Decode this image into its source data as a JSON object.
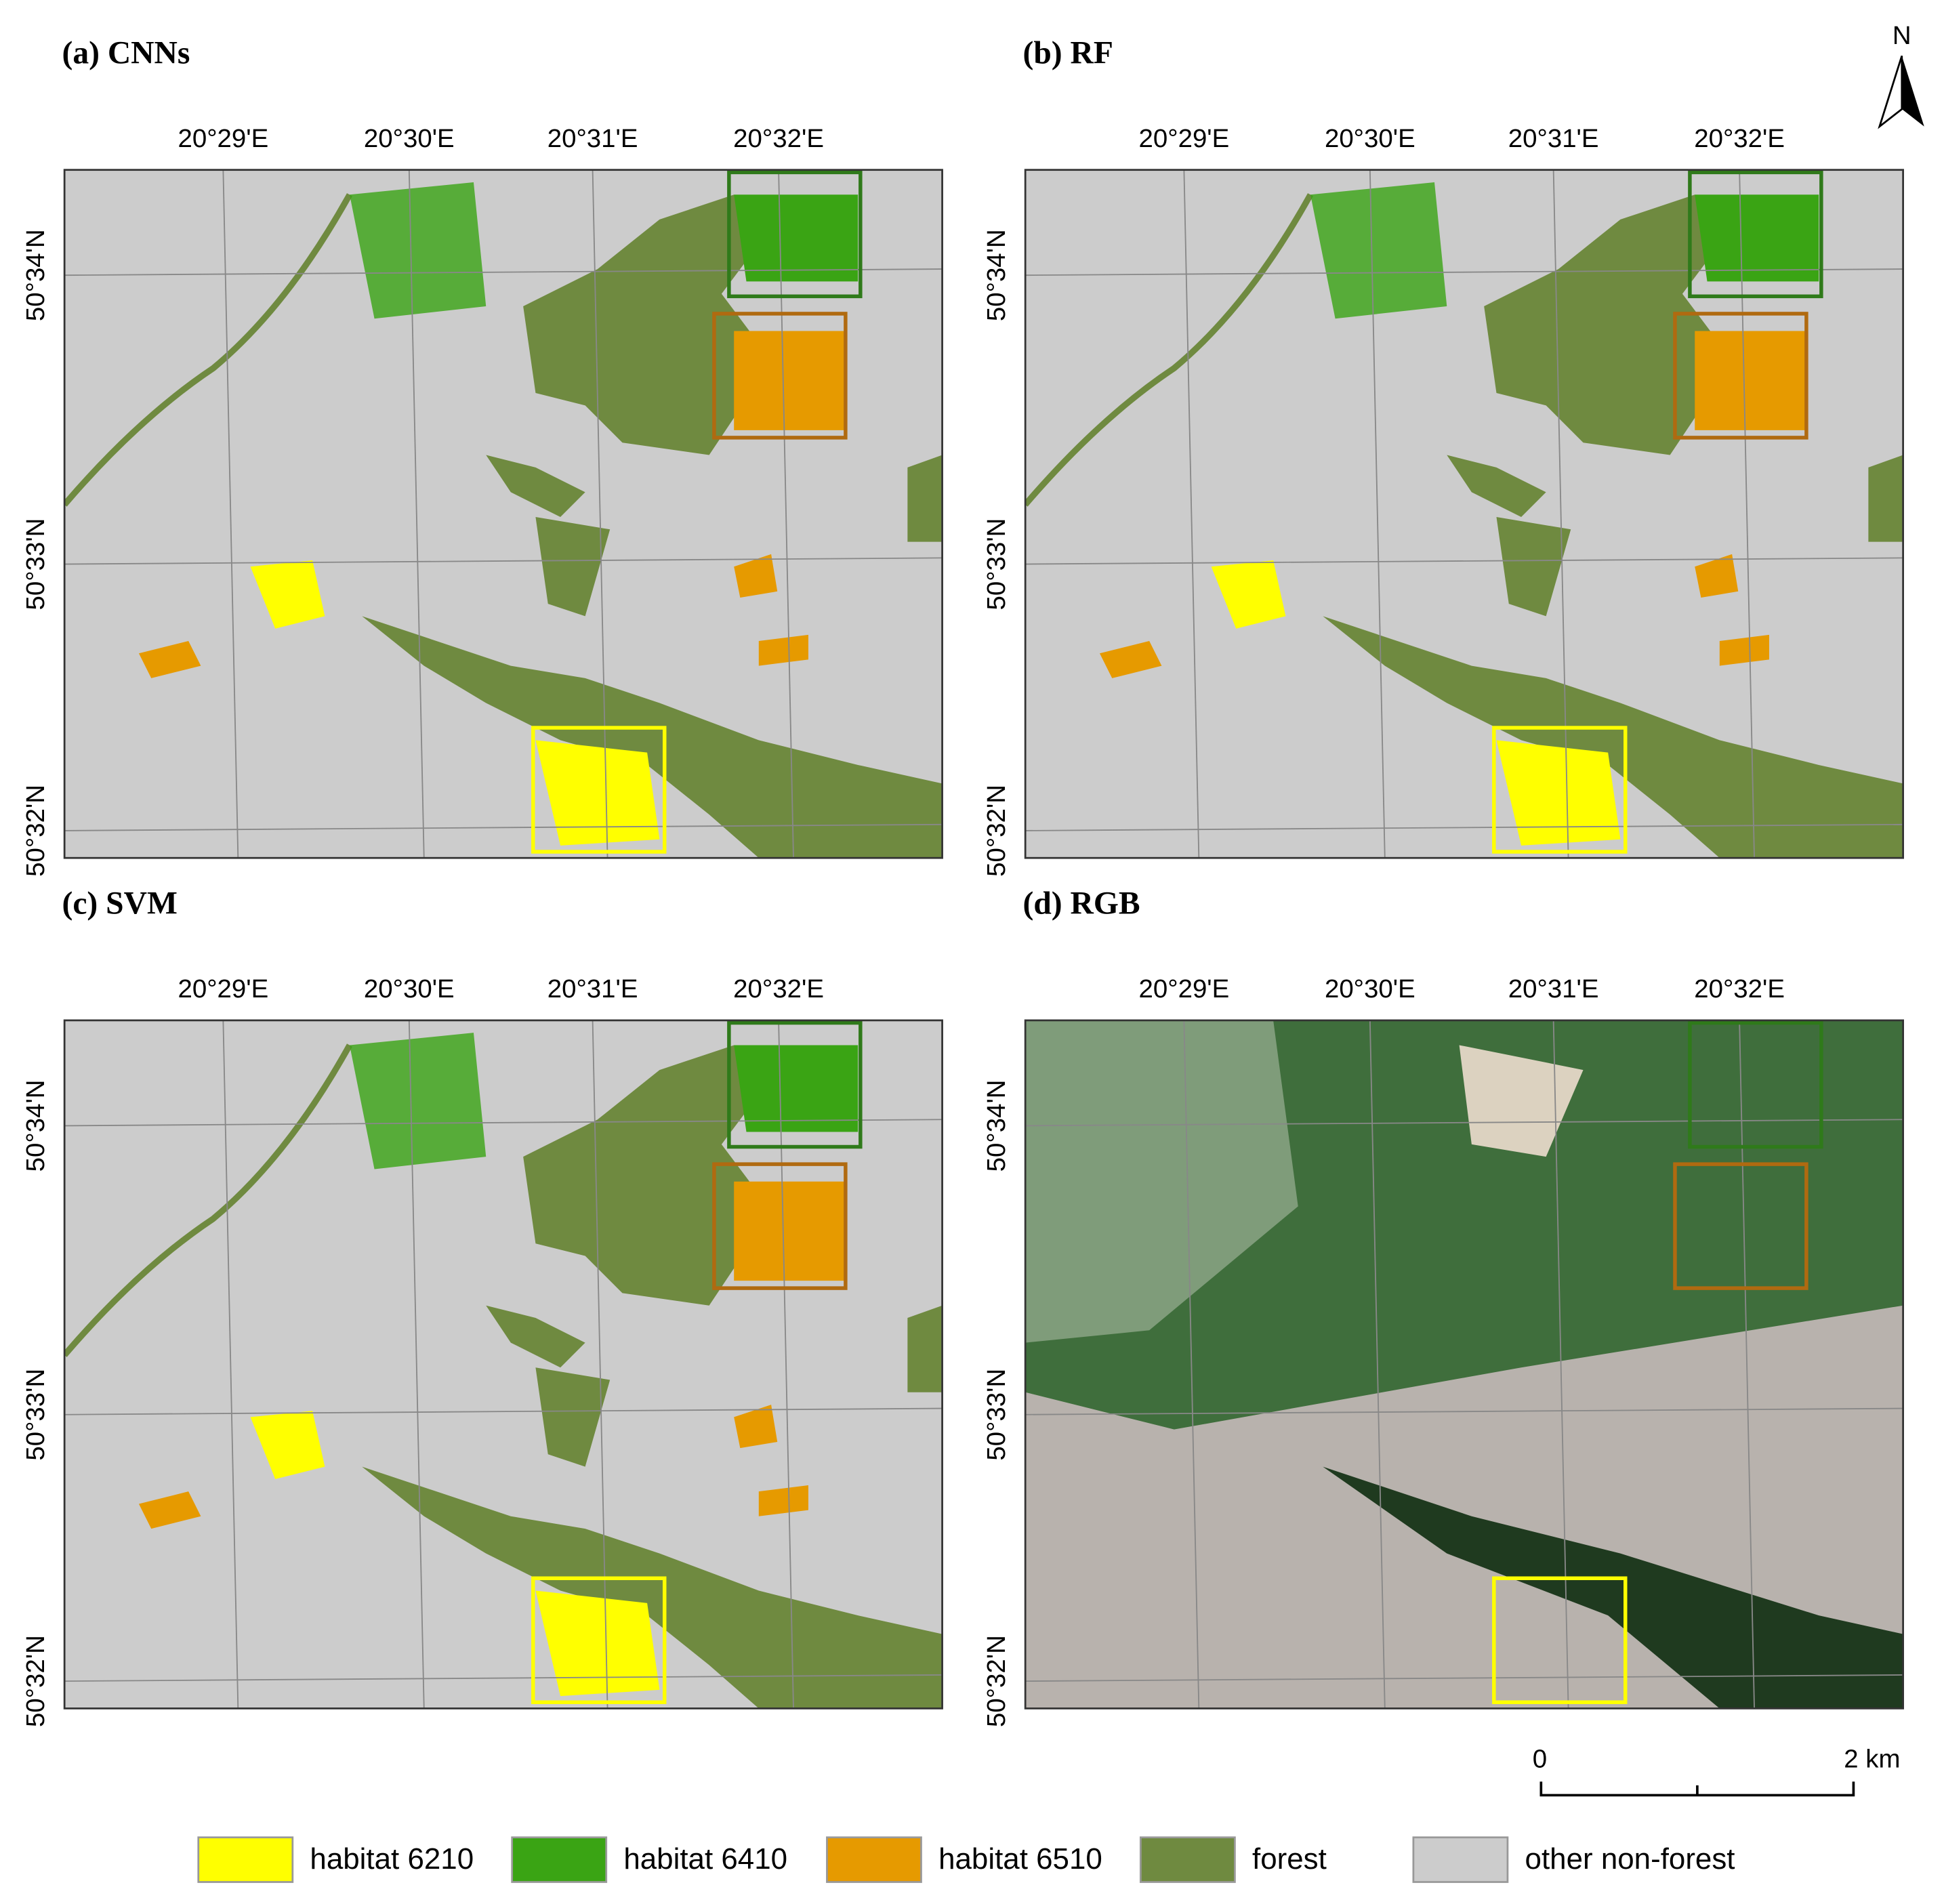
{
  "panels": [
    {
      "title": "(a) CNNs",
      "kind": "class"
    },
    {
      "title": "(b) RF",
      "kind": "class"
    },
    {
      "title": "(c) SVM",
      "kind": "class"
    },
    {
      "title": "(d) RGB",
      "kind": "rgb"
    }
  ],
  "longitudes": [
    "20°29'E",
    "20°30'E",
    "20°31'E",
    "20°32'E"
  ],
  "latitudes": [
    "50°34'N",
    "50°33'N",
    "50°32'N"
  ],
  "north": "N",
  "scale_bar": {
    "start": "0",
    "end": "2 km"
  },
  "legend": [
    {
      "label": "habitat 6210",
      "color": "#ffff00"
    },
    {
      "label": "habitat 6410",
      "color": "#3aa414"
    },
    {
      "label": "habitat 6510",
      "color": "#e69a00"
    },
    {
      "label": "forest",
      "color": "#6f8a40"
    },
    {
      "label": "other non-forest",
      "color": "#cccccc"
    }
  ]
}
